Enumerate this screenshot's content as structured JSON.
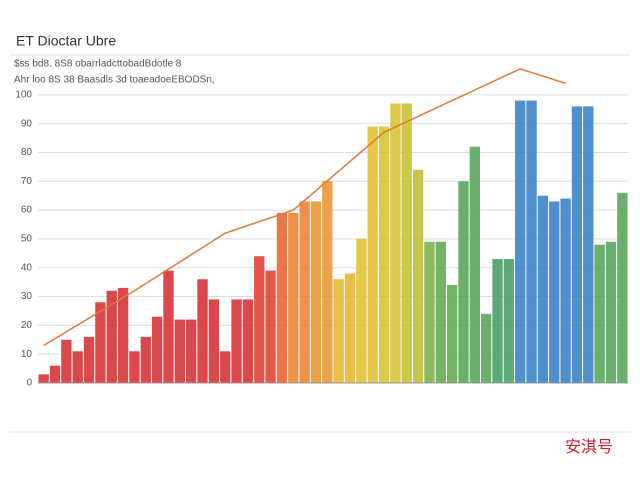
{
  "chart_data": {
    "type": "bar",
    "title": "ET Dioctar Ubre",
    "subtitle": [
      "$ss bd8. 8S8 obarrladcttobadBdotle 8",
      "Ahr loo 8S 38 Baasdls 3d toaeadoeEBODSn,"
    ],
    "watermark": "安淇号",
    "values": [
      3,
      6,
      15,
      11,
      16,
      28,
      32,
      33,
      11,
      16,
      23,
      39,
      22,
      22,
      36,
      29,
      11,
      29,
      29,
      44,
      39,
      59,
      59,
      63,
      63,
      70,
      36,
      38,
      50,
      89,
      89,
      97,
      97,
      74,
      49,
      49,
      34,
      70,
      82,
      24,
      43,
      43,
      98,
      98,
      65,
      63,
      64,
      96,
      96,
      48,
      49,
      66
    ],
    "colors": [
      "#d8383c",
      "#d8383c",
      "#d8383c",
      "#d8383c",
      "#d8383c",
      "#d8383c",
      "#d8383c",
      "#d8383c",
      "#d8383c",
      "#d8383c",
      "#d8383c",
      "#d8383c",
      "#d8383c",
      "#d8383c",
      "#d8383c",
      "#d8383c",
      "#d8383c",
      "#d8383c",
      "#d8383c",
      "#e2473c",
      "#e2473c",
      "#e86a3a",
      "#e98a3a",
      "#e98a3a",
      "#ea9a3a",
      "#ea9a3a",
      "#e8b83a",
      "#e8b83a",
      "#e3c23a",
      "#e3c23a",
      "#d9c43a",
      "#d9c43a",
      "#c9c43a",
      "#c0c040",
      "#7fb452",
      "#6aab58",
      "#6aab58",
      "#5ea860",
      "#5ea860",
      "#5ea860",
      "#4fa36e",
      "#4fa36e",
      "#3f86c8",
      "#3f86c8",
      "#3f86c8",
      "#3f86c8",
      "#3f86c8",
      "#3f86c8",
      "#3f86c8",
      "#5ea860",
      "#5ea860",
      "#5ea860"
    ],
    "line": {
      "color": "#e07a3a",
      "x": [
        0,
        8,
        16,
        22,
        30,
        36,
        42,
        46
      ],
      "values": [
        13,
        32,
        52,
        60,
        87,
        98,
        109,
        104
      ]
    },
    "ylim": [
      0,
      110
    ],
    "yticks": [
      0,
      10,
      20,
      30,
      40,
      50,
      60,
      70,
      80,
      90,
      100
    ],
    "grid": true
  }
}
